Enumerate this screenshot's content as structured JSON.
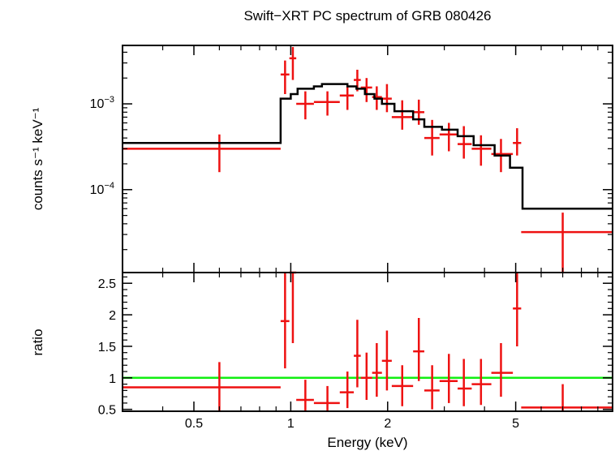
{
  "chart_data": {
    "title": "Swift−XRT PC spectrum of GRB 080426",
    "xlabel": "Energy (keV)",
    "xscale": "log",
    "xlim": [
      0.3,
      10
    ],
    "x_ticks": [
      0.5,
      1,
      2,
      5
    ],
    "x_tick_labels": [
      "0.5",
      "1",
      "2",
      "5"
    ],
    "colors": {
      "data": "#ee1111",
      "model": "#000000",
      "reference": "#11ee11"
    },
    "panels": [
      {
        "id": "spectrum",
        "type": "scatter",
        "ylabel": "counts s⁻¹ keV⁻¹",
        "yscale": "log",
        "ylim": [
          1.08e-05,
          0.0048
        ],
        "y_ticks": [
          0.0001,
          0.001
        ],
        "y_tick_labels": [
          {
            "base": "10",
            "exp": "−4"
          },
          {
            "base": "10",
            "exp": "−3"
          }
        ],
        "series": [
          {
            "kind": "errorbars",
            "points": [
              {
                "x0": 0.3,
                "x1": 0.93,
                "x": 0.6,
                "y": 0.0003,
                "ylo": 0.00016,
                "yhi": 0.00044
              },
              {
                "x0": 0.93,
                "x1": 0.99,
                "x": 0.96,
                "y": 0.0022,
                "ylo": 0.0013,
                "yhi": 0.0032
              },
              {
                "x0": 0.99,
                "x1": 1.04,
                "x": 1.015,
                "y": 0.0034,
                "ylo": 0.0019,
                "yhi": 0.0046
              },
              {
                "x0": 1.04,
                "x1": 1.18,
                "x": 1.11,
                "y": 0.001,
                "ylo": 0.00066,
                "yhi": 0.0014
              },
              {
                "x0": 1.18,
                "x1": 1.42,
                "x": 1.3,
                "y": 0.00105,
                "ylo": 0.00073,
                "yhi": 0.0014
              },
              {
                "x0": 1.42,
                "x1": 1.57,
                "x": 1.5,
                "y": 0.00125,
                "ylo": 0.00085,
                "yhi": 0.0016
              },
              {
                "x0": 1.57,
                "x1": 1.65,
                "x": 1.61,
                "y": 0.0019,
                "ylo": 0.0014,
                "yhi": 0.0025
              },
              {
                "x0": 1.65,
                "x1": 1.79,
                "x": 1.72,
                "y": 0.00155,
                "ylo": 0.00105,
                "yhi": 0.002
              },
              {
                "x0": 1.79,
                "x1": 1.92,
                "x": 1.85,
                "y": 0.0012,
                "ylo": 0.00085,
                "yhi": 0.0016
              },
              {
                "x0": 1.92,
                "x1": 2.06,
                "x": 1.99,
                "y": 0.00115,
                "ylo": 0.0008,
                "yhi": 0.0017
              },
              {
                "x0": 2.06,
                "x1": 2.4,
                "x": 2.22,
                "y": 0.0007,
                "ylo": 0.0005,
                "yhi": 0.0011
              },
              {
                "x0": 2.4,
                "x1": 2.6,
                "x": 2.5,
                "y": 0.0008,
                "ylo": 0.00057,
                "yhi": 0.00112
              },
              {
                "x0": 2.6,
                "x1": 2.9,
                "x": 2.75,
                "y": 0.0004,
                "ylo": 0.00025,
                "yhi": 0.00065
              },
              {
                "x0": 2.9,
                "x1": 3.3,
                "x": 3.1,
                "y": 0.00044,
                "ylo": 0.00028,
                "yhi": 0.0006
              },
              {
                "x0": 3.3,
                "x1": 3.65,
                "x": 3.45,
                "y": 0.00034,
                "ylo": 0.00023,
                "yhi": 0.00055
              },
              {
                "x0": 3.65,
                "x1": 4.2,
                "x": 3.9,
                "y": 0.0003,
                "ylo": 0.00019,
                "yhi": 0.00043
              },
              {
                "x0": 4.2,
                "x1": 4.9,
                "x": 4.5,
                "y": 0.00026,
                "ylo": 0.00016,
                "yhi": 0.00039
              },
              {
                "x0": 4.9,
                "x1": 5.2,
                "x": 5.05,
                "y": 0.00035,
                "ylo": 0.00025,
                "yhi": 0.00052
              },
              {
                "x0": 5.2,
                "x1": 10,
                "x": 7,
                "y": 3.2e-05,
                "ylo": 1.08e-05,
                "yhi": 5.4e-05
              }
            ]
          },
          {
            "kind": "step",
            "points": [
              {
                "x": 0.3,
                "y": 0.00035
              },
              {
                "x": 0.93,
                "y": 0.00035
              },
              {
                "x": 0.93,
                "y": 0.00115
              },
              {
                "x": 1.0,
                "y": 0.00115
              },
              {
                "x": 1.0,
                "y": 0.0013
              },
              {
                "x": 1.05,
                "y": 0.0013
              },
              {
                "x": 1.05,
                "y": 0.0015
              },
              {
                "x": 1.18,
                "y": 0.0015
              },
              {
                "x": 1.18,
                "y": 0.0016
              },
              {
                "x": 1.25,
                "y": 0.0016
              },
              {
                "x": 1.25,
                "y": 0.0017
              },
              {
                "x": 1.5,
                "y": 0.0017
              },
              {
                "x": 1.5,
                "y": 0.0016
              },
              {
                "x": 1.6,
                "y": 0.0016
              },
              {
                "x": 1.6,
                "y": 0.0015
              },
              {
                "x": 1.7,
                "y": 0.0015
              },
              {
                "x": 1.7,
                "y": 0.0013
              },
              {
                "x": 1.82,
                "y": 0.0013
              },
              {
                "x": 1.82,
                "y": 0.00115
              },
              {
                "x": 1.92,
                "y": 0.00115
              },
              {
                "x": 1.92,
                "y": 0.001
              },
              {
                "x": 2.1,
                "y": 0.001
              },
              {
                "x": 2.1,
                "y": 0.00082
              },
              {
                "x": 2.4,
                "y": 0.00082
              },
              {
                "x": 2.4,
                "y": 0.00066
              },
              {
                "x": 2.6,
                "y": 0.00066
              },
              {
                "x": 2.6,
                "y": 0.00054
              },
              {
                "x": 2.95,
                "y": 0.00054
              },
              {
                "x": 2.95,
                "y": 0.0005
              },
              {
                "x": 3.3,
                "y": 0.0005
              },
              {
                "x": 3.3,
                "y": 0.00042
              },
              {
                "x": 3.7,
                "y": 0.00042
              },
              {
                "x": 3.7,
                "y": 0.00033
              },
              {
                "x": 4.3,
                "y": 0.00033
              },
              {
                "x": 4.3,
                "y": 0.00025
              },
              {
                "x": 4.8,
                "y": 0.00025
              },
              {
                "x": 4.8,
                "y": 0.00018
              },
              {
                "x": 5.25,
                "y": 0.00018
              },
              {
                "x": 5.25,
                "y": 6e-05
              },
              {
                "x": 10,
                "y": 6e-05
              }
            ]
          }
        ]
      },
      {
        "id": "ratio",
        "type": "scatter",
        "ylabel": "ratio",
        "yscale": "linear",
        "ylim": [
          0.47,
          2.67
        ],
        "y_ticks": [
          0.5,
          1,
          1.5,
          2,
          2.5
        ],
        "y_tick_labels": [
          "0.5",
          "1",
          "1.5",
          "2",
          "2.5"
        ],
        "reference_line": 1,
        "series": [
          {
            "kind": "errorbars",
            "points": [
              {
                "x0": 0.3,
                "x1": 0.93,
                "x": 0.6,
                "y": 0.85,
                "ylo": 0.47,
                "yhi": 1.25
              },
              {
                "x0": 0.93,
                "x1": 0.99,
                "x": 0.96,
                "y": 1.9,
                "ylo": 1.15,
                "yhi": 2.67
              },
              {
                "x0": 0.99,
                "x1": 1.04,
                "x": 1.015,
                "y": 2.67,
                "ylo": 1.55,
                "yhi": 2.67
              },
              {
                "x0": 1.04,
                "x1": 1.18,
                "x": 1.11,
                "y": 0.65,
                "ylo": 0.47,
                "yhi": 0.97
              },
              {
                "x0": 1.18,
                "x1": 1.42,
                "x": 1.3,
                "y": 0.6,
                "ylo": 0.47,
                "yhi": 0.87
              },
              {
                "x0": 1.42,
                "x1": 1.57,
                "x": 1.5,
                "y": 0.77,
                "ylo": 0.52,
                "yhi": 1.1
              },
              {
                "x0": 1.57,
                "x1": 1.65,
                "x": 1.61,
                "y": 1.35,
                "ylo": 0.85,
                "yhi": 1.92
              },
              {
                "x0": 1.65,
                "x1": 1.79,
                "x": 1.72,
                "y": 1.0,
                "ylo": 0.65,
                "yhi": 1.4
              },
              {
                "x0": 1.79,
                "x1": 1.92,
                "x": 1.85,
                "y": 1.08,
                "ylo": 0.7,
                "yhi": 1.55
              },
              {
                "x0": 1.92,
                "x1": 2.06,
                "x": 1.99,
                "y": 1.27,
                "ylo": 0.8,
                "yhi": 1.75
              },
              {
                "x0": 2.06,
                "x1": 2.4,
                "x": 2.22,
                "y": 0.87,
                "ylo": 0.55,
                "yhi": 1.2
              },
              {
                "x0": 2.4,
                "x1": 2.6,
                "x": 2.5,
                "y": 1.42,
                "ylo": 0.95,
                "yhi": 1.95
              },
              {
                "x0": 2.6,
                "x1": 2.9,
                "x": 2.75,
                "y": 0.8,
                "ylo": 0.5,
                "yhi": 1.2
              },
              {
                "x0": 2.9,
                "x1": 3.3,
                "x": 3.1,
                "y": 0.95,
                "ylo": 0.6,
                "yhi": 1.38
              },
              {
                "x0": 3.3,
                "x1": 3.65,
                "x": 3.45,
                "y": 0.83,
                "ylo": 0.55,
                "yhi": 1.3
              },
              {
                "x0": 3.65,
                "x1": 4.2,
                "x": 3.9,
                "y": 0.9,
                "ylo": 0.57,
                "yhi": 1.3
              },
              {
                "x0": 4.2,
                "x1": 4.9,
                "x": 4.5,
                "y": 1.08,
                "ylo": 0.7,
                "yhi": 1.55
              },
              {
                "x0": 4.9,
                "x1": 5.2,
                "x": 5.05,
                "y": 2.1,
                "ylo": 1.5,
                "yhi": 2.67
              },
              {
                "x0": 5.2,
                "x1": 10,
                "x": 7,
                "y": 0.53,
                "ylo": 0.47,
                "yhi": 0.9
              }
            ]
          }
        ]
      }
    ]
  }
}
